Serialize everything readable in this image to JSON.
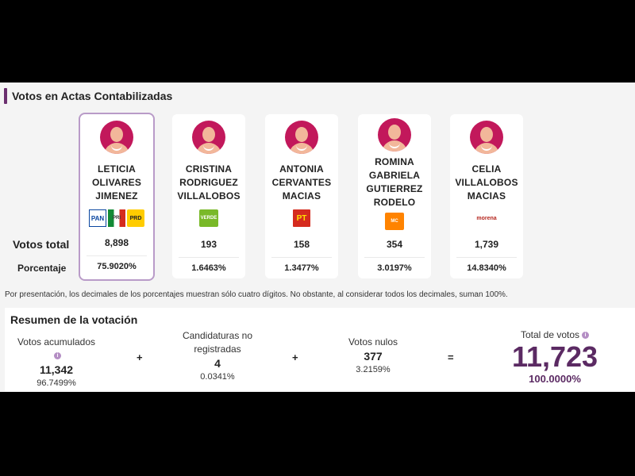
{
  "section": {
    "title": "Votos en Actas Contabilizadas"
  },
  "row_labels": {
    "votos_total": "Votos total",
    "porcentaje": "Porcentaje"
  },
  "candidates": [
    {
      "name_lines": [
        "LETICIA",
        "OLIVARES",
        "JIMENEZ"
      ],
      "parties": [
        "PAN",
        "PRI",
        "PRD"
      ],
      "votes": "8,898",
      "percent": "75.9020%"
    },
    {
      "name_lines": [
        "CRISTINA",
        "RODRIGUEZ",
        "VILLALOBOS"
      ],
      "parties": [
        "VERDE"
      ],
      "votes": "193",
      "percent": "1.6463%"
    },
    {
      "name_lines": [
        "ANTONIA",
        "CERVANTES",
        "MACIAS"
      ],
      "parties": [
        "PT"
      ],
      "votes": "158",
      "percent": "1.3477%"
    },
    {
      "name_lines": [
        "ROMINA",
        "GABRIELA",
        "GUTIERREZ",
        "RODELO"
      ],
      "parties": [
        "MC"
      ],
      "votes": "354",
      "percent": "3.0197%"
    },
    {
      "name_lines": [
        "CELIA",
        "VILLALOBOS",
        "MACIAS"
      ],
      "parties": [
        "morena"
      ],
      "votes": "1,739",
      "percent": "14.8340%"
    }
  ],
  "party_logos": {
    "PAN": "PAN",
    "PRI": "PRI",
    "PRD": "PRD",
    "VERDE": "VERDE",
    "PT": "PT",
    "MC": "MC",
    "morena": "morena"
  },
  "footnote": "Por presentación, los decimales de los porcentajes muestran sólo cuatro dígitos. No obstante, al considerar todos los decimales, suman 100%.",
  "summary": {
    "title": "Resumen de la votación",
    "acumulados": {
      "label": "Votos acumulados",
      "value": "11,342",
      "percent": "96.7499%"
    },
    "no_registradas": {
      "label_lines": [
        "Candidaturas no",
        "registradas"
      ],
      "value": "4",
      "percent": "0.0341%"
    },
    "nulos": {
      "label": "Votos nulos",
      "value": "377",
      "percent": "3.2159%"
    },
    "total": {
      "label": "Total de votos",
      "value": "11,723",
      "percent": "100.0000%"
    },
    "operators": {
      "plus": "+",
      "equals": "="
    }
  },
  "colors": {
    "accent": "#5b2a63",
    "avatar": "#c2185b",
    "highlight_border": "#b99bc8"
  }
}
